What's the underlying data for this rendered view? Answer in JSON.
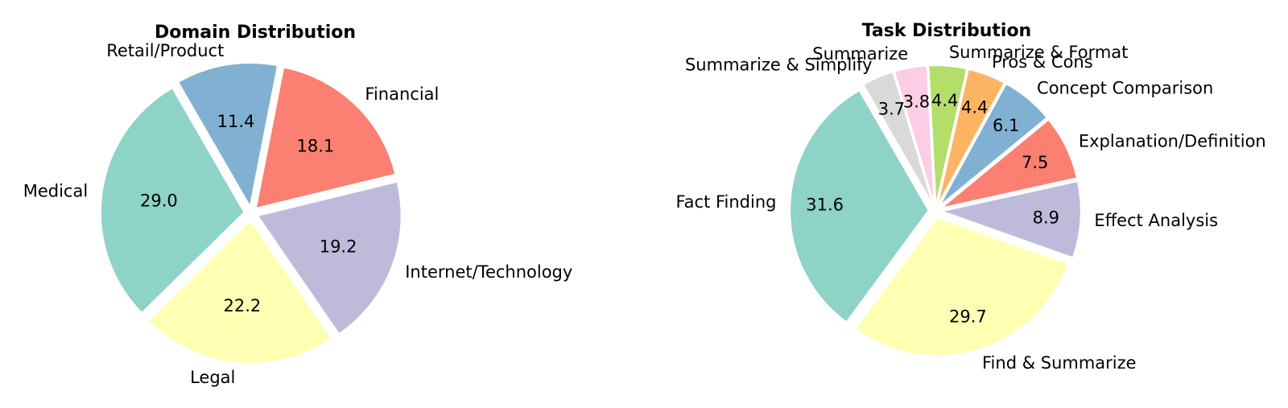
{
  "chart_data": [
    {
      "type": "pie",
      "title": "Domain Distribution",
      "slices": [
        {
          "label": "Medical",
          "value": 29.0,
          "value_label": "29.0",
          "color": "#8dd3c7"
        },
        {
          "label": "Legal",
          "value": 22.2,
          "value_label": "22.2",
          "color": "#ffffb3"
        },
        {
          "label": "Internet/Technology",
          "value": 19.2,
          "value_label": "19.2",
          "color": "#bebada"
        },
        {
          "label": "Financial",
          "value": 18.1,
          "value_label": "18.1",
          "color": "#fb8072"
        },
        {
          "label": "Retail/Product",
          "value": 11.4,
          "value_label": "11.4",
          "color": "#80b1d3"
        }
      ]
    },
    {
      "type": "pie",
      "title": "Task Distribution",
      "slices": [
        {
          "label": "Fact Finding",
          "value": 31.6,
          "value_label": "31.6",
          "color": "#8dd3c7"
        },
        {
          "label": "Find & Summarize",
          "value": 29.7,
          "value_label": "29.7",
          "color": "#ffffb3"
        },
        {
          "label": "Effect Analysis",
          "value": 8.9,
          "value_label": "8.9",
          "color": "#bebada"
        },
        {
          "label": "Explanation/Definition",
          "value": 7.5,
          "value_label": "7.5",
          "color": "#fb8072"
        },
        {
          "label": "Concept Comparison",
          "value": 6.1,
          "value_label": "6.1",
          "color": "#80b1d3"
        },
        {
          "label": "Pros & Cons",
          "value": 4.4,
          "value_label": "4.4",
          "color": "#fdb462"
        },
        {
          "label": "Summarize & Format",
          "value": 4.4,
          "value_label": "4.4",
          "color": "#b3de69"
        },
        {
          "label": "Summarize",
          "value": 3.8,
          "value_label": "3.8",
          "color": "#fccde5"
        },
        {
          "label": "Summarize & Simplify",
          "value": 3.7,
          "value_label": "3.7",
          "color": "#d9d9d9"
        }
      ]
    }
  ]
}
